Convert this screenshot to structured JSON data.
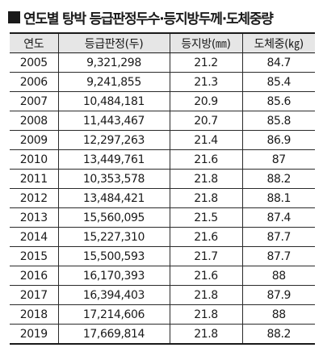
{
  "title": "연도별 탕박 등급판정두수·등지방두께·도체중량",
  "columns": [
    "연도",
    "등급판정(두)",
    "등지방(㎜)",
    "도체중(㎏)"
  ],
  "rows": [
    {
      "year": "2005",
      "count": "9,321,298",
      "fat": "21.2",
      "weight": "84.7"
    },
    {
      "year": "2006",
      "count": "9,241,855",
      "fat": "21.3",
      "weight": "85.4"
    },
    {
      "year": "2007",
      "count": "10,484,181",
      "fat": "20.9",
      "weight": "85.6"
    },
    {
      "year": "2008",
      "count": "11,443,467",
      "fat": "20.7",
      "weight": "85.8"
    },
    {
      "year": "2009",
      "count": "12,297,263",
      "fat": "21.4",
      "weight": "86.9"
    },
    {
      "year": "2010",
      "count": "13,449,761",
      "fat": "21.6",
      "weight": "87"
    },
    {
      "year": "2011",
      "count": "10,353,578",
      "fat": "21.8",
      "weight": "88.2"
    },
    {
      "year": "2012",
      "count": "13,484,421",
      "fat": "21.8",
      "weight": "88.1"
    },
    {
      "year": "2013",
      "count": "15,560,095",
      "fat": "21.5",
      "weight": "87.4"
    },
    {
      "year": "2014",
      "count": "15,227,310",
      "fat": "21.6",
      "weight": "87.7"
    },
    {
      "year": "2015",
      "count": "15,500,593",
      "fat": "21.7",
      "weight": "87.7"
    },
    {
      "year": "2016",
      "count": "16,170,393",
      "fat": "21.6",
      "weight": "88"
    },
    {
      "year": "2017",
      "count": "16,394,403",
      "fat": "21.8",
      "weight": "87.9"
    },
    {
      "year": "2018",
      "count": "17,214,606",
      "fat": "21.8",
      "weight": "88"
    },
    {
      "year": "2019",
      "count": "17,669,814",
      "fat": "21.8",
      "weight": "88.2"
    }
  ],
  "colors": {
    "header_bg": "#e6e6e6",
    "border": "#2a2a2a",
    "text": "#1a1a1a"
  },
  "icons": {
    "title_marker": "black-square-icon"
  }
}
